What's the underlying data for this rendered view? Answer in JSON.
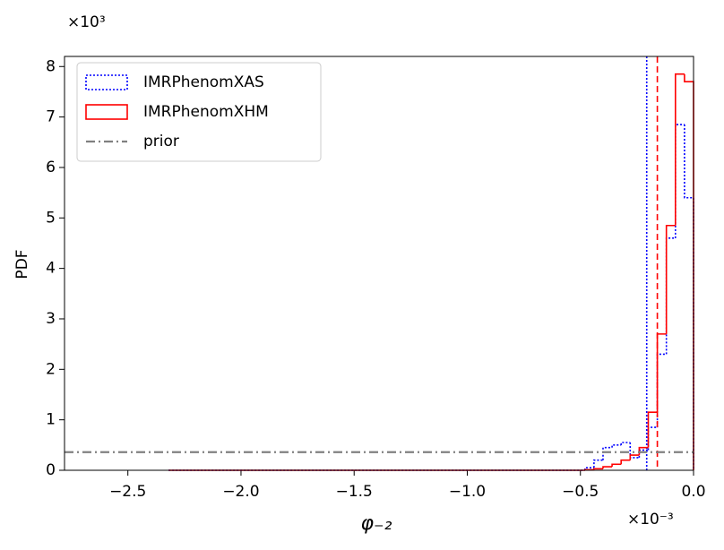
{
  "chart_data": {
    "type": "step_histogram",
    "y_offset": "×10³",
    "x_offset": "×10⁻³",
    "y_label": "PDF",
    "x_label": "φ₋₂",
    "bins": [
      -2.32,
      -0.48,
      -0.44,
      -0.4,
      -0.36,
      -0.32,
      -0.28,
      -0.24,
      -0.2,
      -0.16,
      -0.12,
      -0.08,
      -0.04,
      0
    ],
    "series": [
      {
        "name": "IMRPhenomXAS",
        "color": "#0000ff",
        "style": "dotted",
        "marker_x": -0.207,
        "values": [
          0,
          0.05,
          0.2,
          0.45,
          0.5,
          0.55,
          0.25,
          0.4,
          0.85,
          2.3,
          4.6,
          6.85,
          5.4
        ]
      },
      {
        "name": "IMRPhenomXHM",
        "color": "#ff0000",
        "style": "solid",
        "marker_x": -0.16,
        "values": [
          0,
          0.01,
          0.03,
          0.07,
          0.12,
          0.2,
          0.3,
          0.45,
          1.15,
          2.7,
          4.85,
          7.85,
          7.7
        ]
      },
      {
        "name": "prior",
        "color": "#808080",
        "style": "dashdot",
        "value": 0.36
      }
    ],
    "xlim": [
      -2.78,
      0
    ],
    "ylim": [
      0,
      8.2
    ],
    "xticks": [
      {
        "value": -2.5,
        "label": "−2.5"
      },
      {
        "value": -2.0,
        "label": "−2.0"
      },
      {
        "value": -1.5,
        "label": "−1.5"
      },
      {
        "value": -1.0,
        "label": "−1.0"
      },
      {
        "value": -0.5,
        "label": "−0.5"
      },
      {
        "value": 0,
        "label": "0.0"
      }
    ],
    "yticks": [
      0,
      1,
      2,
      3,
      4,
      5,
      6,
      7,
      8
    ],
    "legend": "upper left"
  }
}
